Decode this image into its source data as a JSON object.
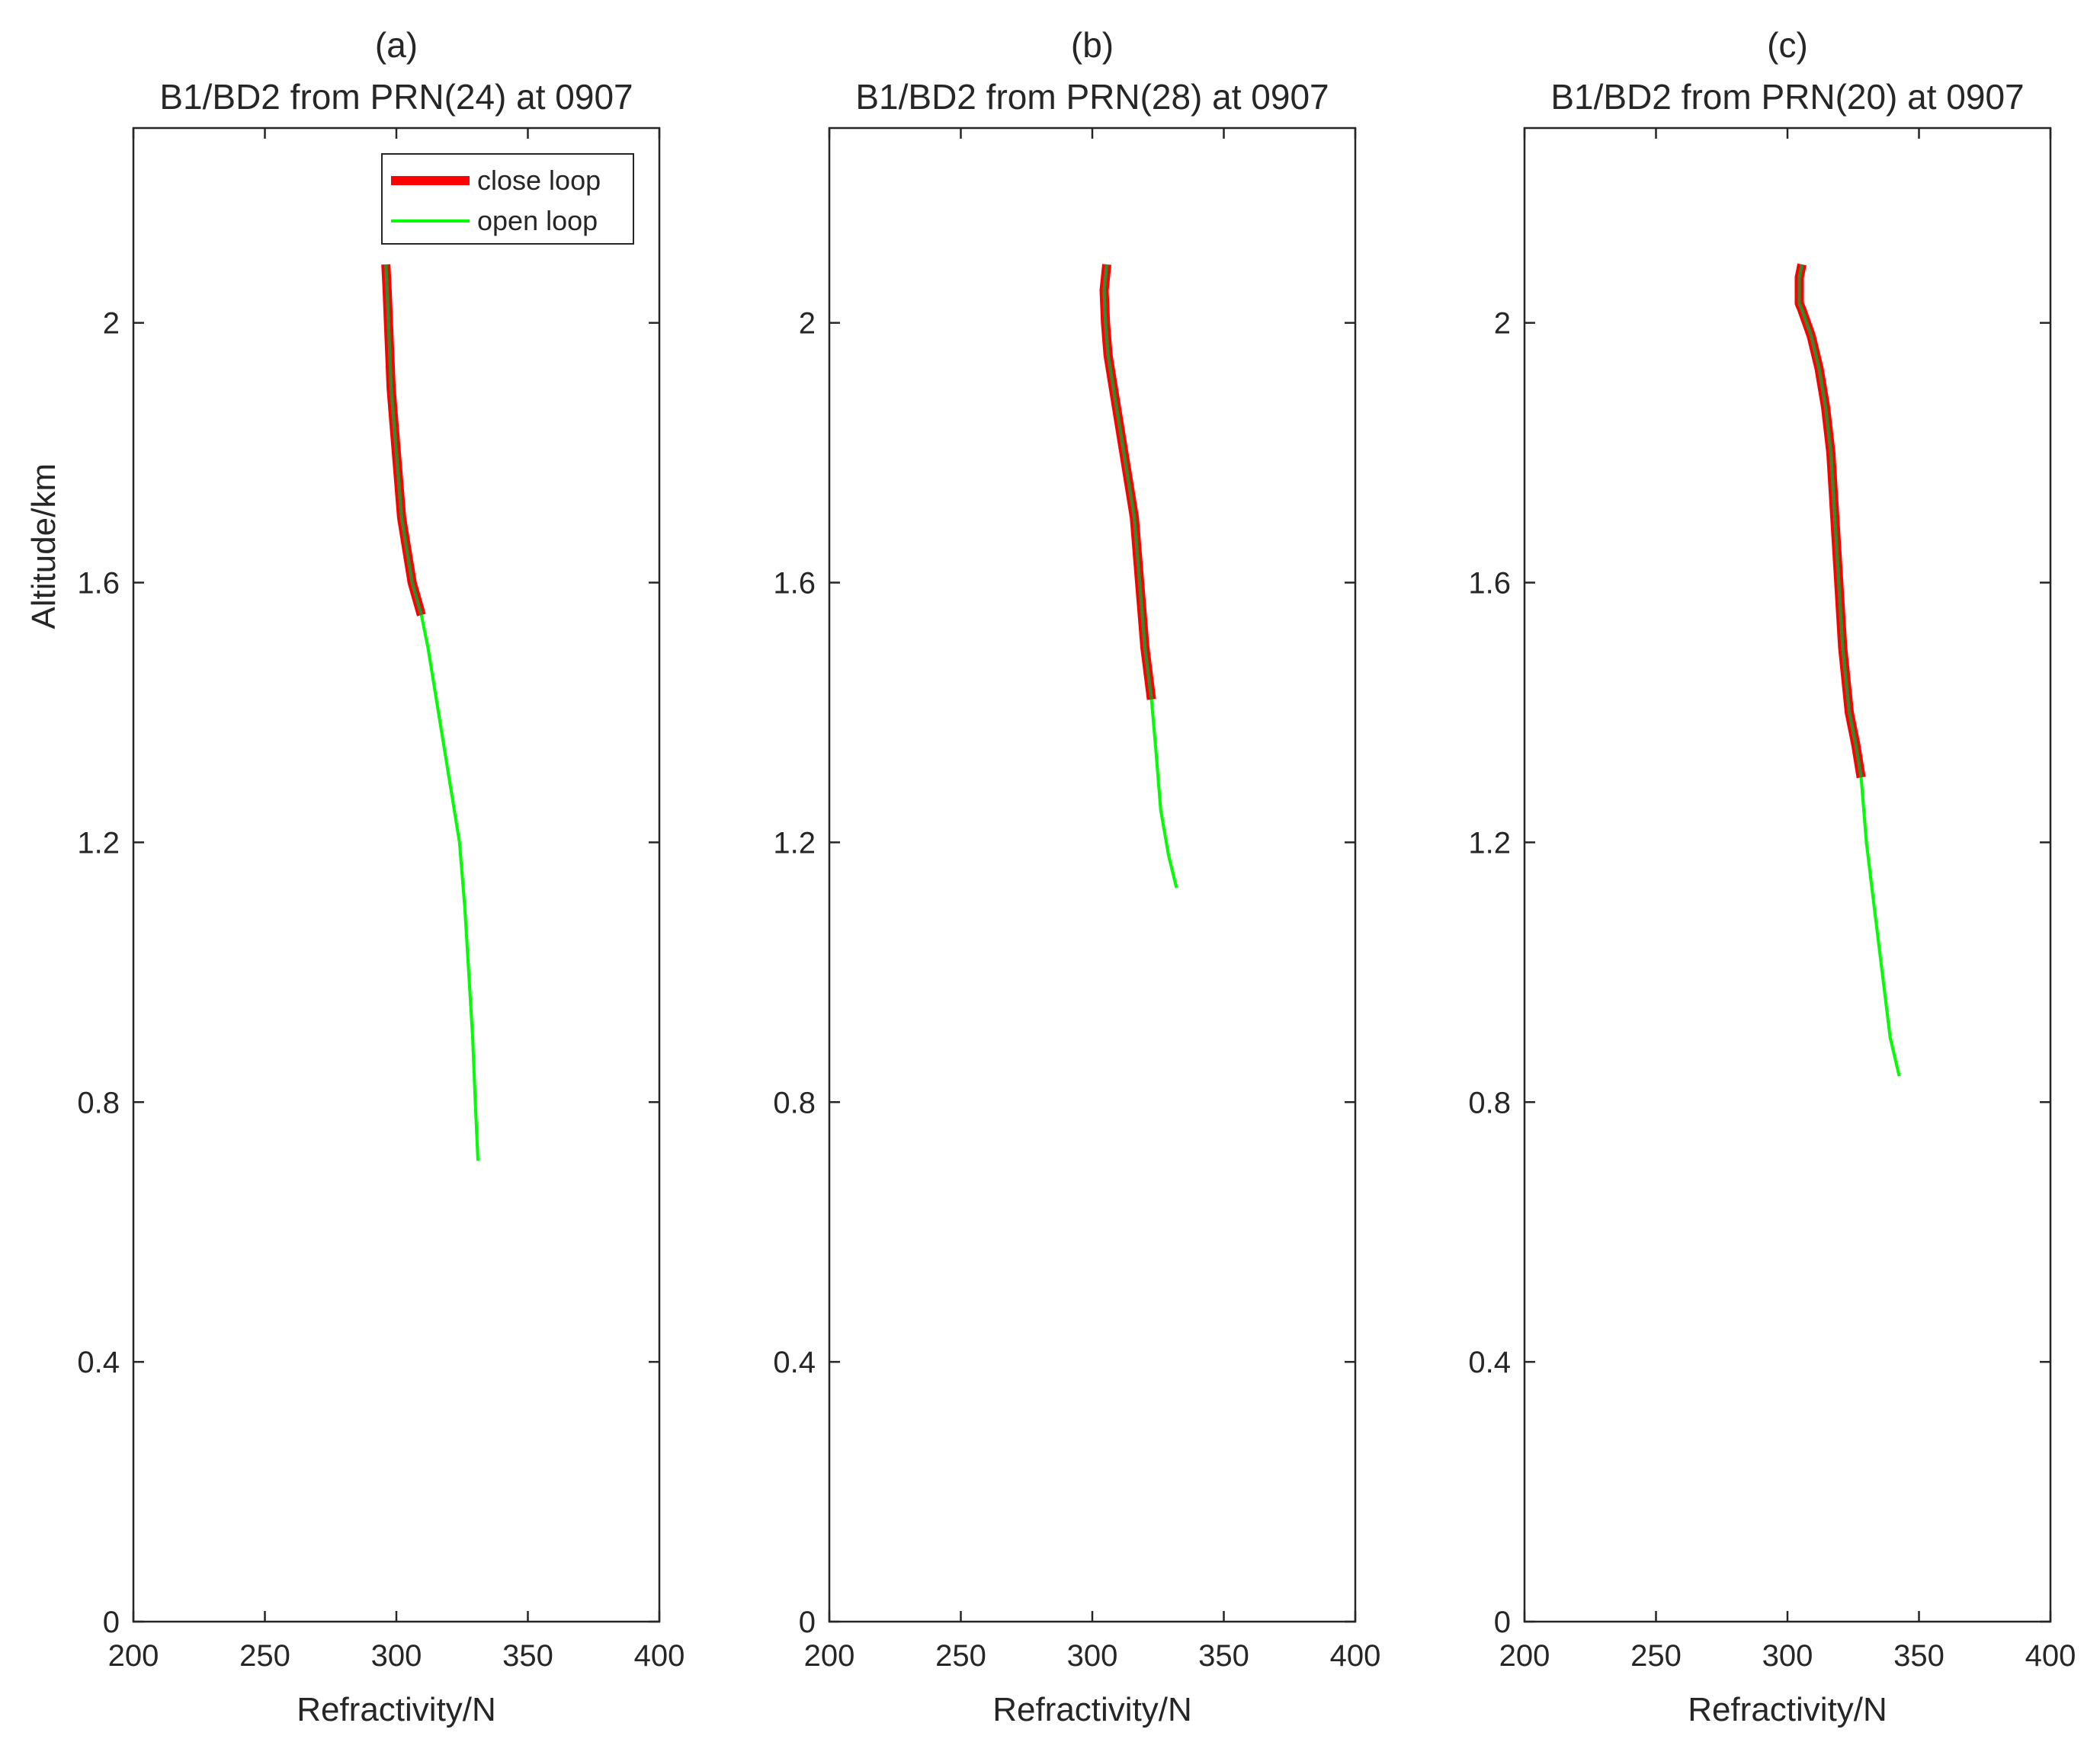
{
  "chart_data": {
    "type": "line",
    "ylabel": "Altitude/km",
    "xlabel": "Refractivity/N",
    "xlim": [
      200,
      400
    ],
    "ylim": [
      0,
      2.3
    ],
    "xticks": [
      "200",
      "250",
      "300",
      "350",
      "400"
    ],
    "yticks": [
      "0",
      "0.4",
      "0.8",
      "1.2",
      "1.6",
      "2"
    ],
    "colors": {
      "close_loop": "#ff0000",
      "open_loop": "#00ff00",
      "inner_line": "#2e8b2e"
    },
    "legend": {
      "position": "top-right",
      "entries": [
        "close loop",
        "open loop"
      ]
    },
    "panels": [
      {
        "label": "(a)",
        "title": "B1/BD2 from PRN(24) at 0907",
        "xlabel": "Refractivity/N",
        "ylabel": "Altitude/km",
        "show_legend": true,
        "series": [
          {
            "name": "close loop",
            "x": [
              296,
              296.5,
              297,
              297.5,
              298,
              299,
              300,
              302,
              306,
              309.5
            ],
            "y": [
              2.09,
              2.05,
              2.0,
              1.95,
              1.9,
              1.85,
              1.8,
              1.7,
              1.6,
              1.55
            ]
          },
          {
            "name": "open loop",
            "x": [
              296,
              296.5,
              297,
              297.5,
              298,
              299,
              300,
              302,
              306,
              309.5,
              312,
              316,
              320,
              324,
              326,
              327.5,
              329,
              330,
              331
            ],
            "y": [
              2.09,
              2.05,
              2.0,
              1.95,
              1.9,
              1.85,
              1.8,
              1.7,
              1.6,
              1.55,
              1.5,
              1.4,
              1.3,
              1.2,
              1.1,
              1.0,
              0.9,
              0.8,
              0.71
            ]
          }
        ]
      },
      {
        "label": "(b)",
        "title": "B1/BD2 from PRN(28) at 0907",
        "xlabel": "Refractivity/N",
        "ylabel": "",
        "show_legend": false,
        "series": [
          {
            "name": "close loop",
            "x": [
              305.5,
              304.5,
              305,
              306,
              308,
              310,
              312,
              314,
              316,
              318,
              320,
              322.5
            ],
            "y": [
              2.09,
              2.05,
              2.0,
              1.95,
              1.9,
              1.85,
              1.8,
              1.75,
              1.7,
              1.6,
              1.5,
              1.42
            ]
          },
          {
            "name": "open loop",
            "x": [
              305.5,
              304.5,
              305,
              306,
              308,
              310,
              312,
              314,
              316,
              318,
              320,
              322.5,
              324,
              326,
              329,
              332
            ],
            "y": [
              2.09,
              2.05,
              2.0,
              1.95,
              1.9,
              1.85,
              1.8,
              1.75,
              1.7,
              1.6,
              1.5,
              1.42,
              1.35,
              1.25,
              1.18,
              1.13
            ]
          }
        ]
      },
      {
        "label": "(c)",
        "title": "B1/BD2 from PRN(20) at 0907",
        "xlabel": "Refractivity/N",
        "ylabel": "",
        "show_legend": false,
        "series": [
          {
            "name": "close loop",
            "x": [
              305.5,
              304.5,
              304.5,
              305.5,
              309,
              312,
              314.5,
              316.5,
              318,
              319.5,
              321,
              323.5,
              326,
              328
            ],
            "y": [
              2.09,
              2.07,
              2.03,
              2.02,
              1.98,
              1.93,
              1.87,
              1.8,
              1.7,
              1.6,
              1.5,
              1.4,
              1.35,
              1.3
            ]
          },
          {
            "name": "open loop",
            "x": [
              305.5,
              304.5,
              304.5,
              305.5,
              309,
              312,
              314.5,
              316.5,
              318,
              319.5,
              321,
              323.5,
              326,
              328,
              330,
              333,
              336,
              339,
              342.5
            ],
            "y": [
              2.09,
              2.07,
              2.03,
              2.02,
              1.98,
              1.93,
              1.87,
              1.8,
              1.7,
              1.6,
              1.5,
              1.4,
              1.35,
              1.3,
              1.2,
              1.1,
              1.0,
              0.9,
              0.84
            ]
          }
        ]
      }
    ]
  }
}
